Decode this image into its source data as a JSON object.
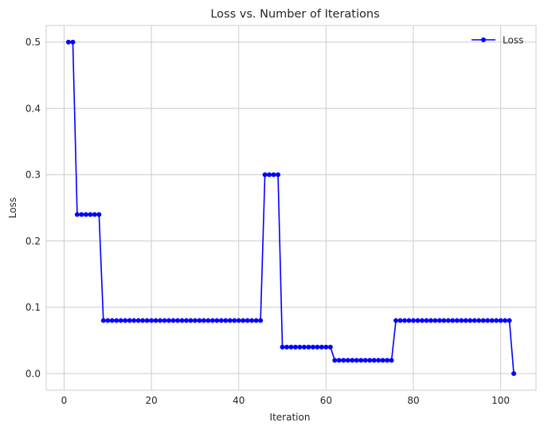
{
  "chart_data": {
    "type": "line",
    "title": "Loss vs. Number of Iterations",
    "xlabel": "Iteration",
    "ylabel": "Loss",
    "xlim": [
      -4.1,
      108.1
    ],
    "ylim": [
      -0.025,
      0.525
    ],
    "xticks": [
      {
        "value": 0,
        "label": "0"
      },
      {
        "value": 20,
        "label": "20"
      },
      {
        "value": 40,
        "label": "40"
      },
      {
        "value": 60,
        "label": "60"
      },
      {
        "value": 80,
        "label": "80"
      },
      {
        "value": 100,
        "label": "100"
      }
    ],
    "yticks": [
      {
        "value": 0.0,
        "label": "0.0"
      },
      {
        "value": 0.1,
        "label": "0.1"
      },
      {
        "value": 0.2,
        "label": "0.2"
      },
      {
        "value": 0.3,
        "label": "0.3"
      },
      {
        "value": 0.4,
        "label": "0.4"
      },
      {
        "value": 0.5,
        "label": "0.5"
      }
    ],
    "grid": true,
    "legend_position": "top-right",
    "series": [
      {
        "name": "Loss",
        "color": "#0000ff",
        "marker": "circle",
        "x": [
          1,
          2,
          3,
          4,
          5,
          6,
          7,
          8,
          9,
          10,
          11,
          12,
          13,
          14,
          15,
          16,
          17,
          18,
          19,
          20,
          21,
          22,
          23,
          24,
          25,
          26,
          27,
          28,
          29,
          30,
          31,
          32,
          33,
          34,
          35,
          36,
          37,
          38,
          39,
          40,
          41,
          42,
          43,
          44,
          45,
          46,
          47,
          48,
          49,
          50,
          51,
          52,
          53,
          54,
          55,
          56,
          57,
          58,
          59,
          60,
          61,
          62,
          63,
          64,
          65,
          66,
          67,
          68,
          69,
          70,
          71,
          72,
          73,
          74,
          75,
          76,
          77,
          78,
          79,
          80,
          81,
          82,
          83,
          84,
          85,
          86,
          87,
          88,
          89,
          90,
          91,
          92,
          93,
          94,
          95,
          96,
          97,
          98,
          99,
          100,
          101,
          102,
          103
        ],
        "y": [
          0.5,
          0.5,
          0.24,
          0.24,
          0.24,
          0.24,
          0.24,
          0.24,
          0.08,
          0.08,
          0.08,
          0.08,
          0.08,
          0.08,
          0.08,
          0.08,
          0.08,
          0.08,
          0.08,
          0.08,
          0.08,
          0.08,
          0.08,
          0.08,
          0.08,
          0.08,
          0.08,
          0.08,
          0.08,
          0.08,
          0.08,
          0.08,
          0.08,
          0.08,
          0.08,
          0.08,
          0.08,
          0.08,
          0.08,
          0.08,
          0.08,
          0.08,
          0.08,
          0.08,
          0.08,
          0.3,
          0.3,
          0.3,
          0.3,
          0.04,
          0.04,
          0.04,
          0.04,
          0.04,
          0.04,
          0.04,
          0.04,
          0.04,
          0.04,
          0.04,
          0.04,
          0.02,
          0.02,
          0.02,
          0.02,
          0.02,
          0.02,
          0.02,
          0.02,
          0.02,
          0.02,
          0.02,
          0.02,
          0.02,
          0.02,
          0.08,
          0.08,
          0.08,
          0.08,
          0.08,
          0.08,
          0.08,
          0.08,
          0.08,
          0.08,
          0.08,
          0.08,
          0.08,
          0.08,
          0.08,
          0.08,
          0.08,
          0.08,
          0.08,
          0.08,
          0.08,
          0.08,
          0.08,
          0.08,
          0.08,
          0.08,
          0.08,
          0.0
        ]
      }
    ]
  }
}
